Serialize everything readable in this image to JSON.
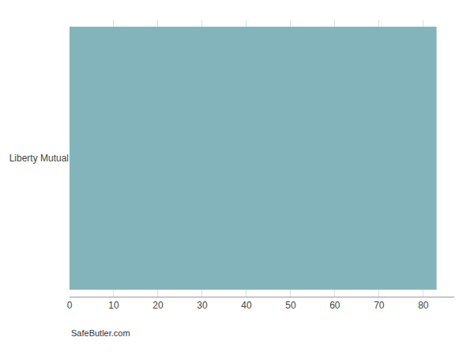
{
  "chart_data": {
    "type": "bar",
    "orientation": "horizontal",
    "categories": [
      "Liberty Mutual"
    ],
    "values": [
      83
    ],
    "color": "#83b4bb",
    "xlim": [
      0,
      87
    ],
    "xticks": [
      0,
      10,
      20,
      30,
      40,
      50,
      60,
      70,
      80
    ],
    "grid": true,
    "annotations": [
      "SafeButler.com"
    ]
  }
}
